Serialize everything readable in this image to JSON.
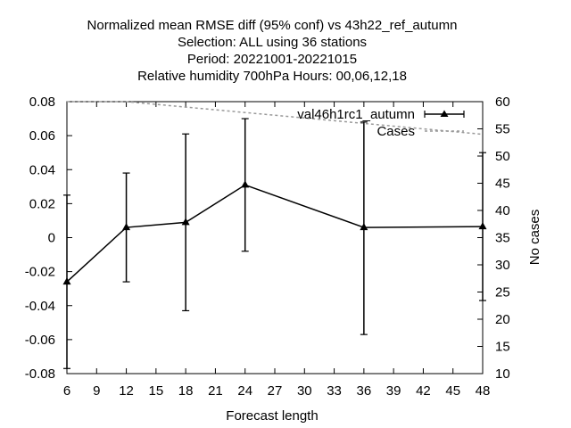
{
  "chart_data": {
    "type": "line",
    "title_lines": [
      "Normalized mean RMSE diff (95% conf) vs 43h22_ref_autumn",
      "Selection: ALL using    36 stations",
      "Period: 20221001-20221015",
      "Relative humidity 700hPa   Hours:  00,06,12,18"
    ],
    "xlabel": "Forecast length",
    "ylabel": "",
    "y2label": "No cases",
    "xlim": [
      6,
      48
    ],
    "ylim": [
      -0.08,
      0.08
    ],
    "y2lim": [
      10,
      60
    ],
    "x_ticks": [
      "6",
      "9",
      "12",
      "15",
      "18",
      "21",
      "24",
      "27",
      "30",
      "33",
      "36",
      "39",
      "42",
      "45",
      "48"
    ],
    "y_ticks": [
      "-0.08",
      "-0.06",
      "-0.04",
      "-0.02",
      "0",
      "0.02",
      "0.04",
      "0.06",
      "0.08"
    ],
    "y2_ticks": [
      "10",
      "15",
      "20",
      "25",
      "30",
      "35",
      "40",
      "45",
      "50",
      "55",
      "60"
    ],
    "grid": false,
    "legend_position": "top-right",
    "series": [
      {
        "name": "val46h1rc1_autumn",
        "axis": "left",
        "color": "#000000",
        "marker": "triangle",
        "x": [
          6,
          12,
          18,
          24,
          36,
          48
        ],
        "y": [
          -0.026,
          0.006,
          0.009,
          0.031,
          0.006,
          0.0065
        ],
        "error_low": [
          -0.077,
          -0.026,
          -0.043,
          -0.008,
          -0.057,
          -0.037
        ],
        "error_high": [
          0.025,
          0.038,
          0.061,
          0.07,
          0.068,
          0.05
        ]
      },
      {
        "name": "Cases",
        "axis": "right",
        "color": "#999999",
        "style": "dashed",
        "x": [
          6,
          12,
          18,
          24,
          36,
          42,
          48
        ],
        "y": [
          60,
          60,
          59,
          58,
          56,
          55,
          54
        ]
      }
    ]
  }
}
